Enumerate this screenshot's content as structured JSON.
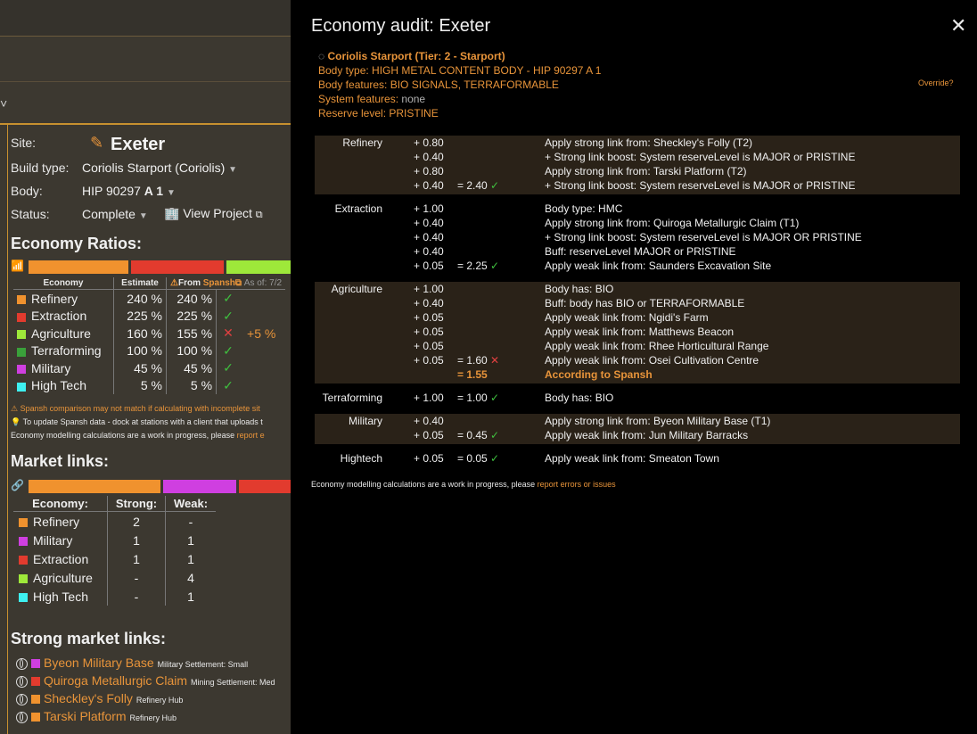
{
  "left": {
    "chevron": "˅",
    "site_label": "Site:",
    "site_name": "Exeter",
    "build_type_label": "Build type:",
    "build_type_value": "Coriolis Starport (Coriolis)",
    "body_label": "Body:",
    "body_value": "HIP 90297",
    "body_bold": "A 1",
    "status_label": "Status:",
    "status_value": "Complete",
    "view_project": "View Project",
    "economy_ratios_title": "Economy Ratios:",
    "ratio_colors": [
      "#f0922e",
      "#e23b2e",
      "#9ee83a"
    ],
    "eco_table": {
      "h_economy": "Economy",
      "h_estimate": "Estimate",
      "h_from": "From",
      "h_spansh": "Spansh",
      "h_asof": "As of: 7/2",
      "rows": [
        {
          "name": "Refinery",
          "color": "#f0922e",
          "est": "240 %",
          "spansh": "240 %",
          "mark": "✓",
          "diff": ""
        },
        {
          "name": "Extraction",
          "color": "#e23b2e",
          "est": "225 %",
          "spansh": "225 %",
          "mark": "✓",
          "diff": ""
        },
        {
          "name": "Agriculture",
          "color": "#9ee83a",
          "est": "160 %",
          "spansh": "155 %",
          "mark": "✕",
          "diff": "+5 %"
        },
        {
          "name": "Terraforming",
          "color": "#3aa03a",
          "est": "100 %",
          "spansh": "100 %",
          "mark": "✓",
          "diff": ""
        },
        {
          "name": "Military",
          "color": "#cf3fe0",
          "est": "45 %",
          "spansh": "45 %",
          "mark": "✓",
          "diff": ""
        },
        {
          "name": "High Tech",
          "color": "#3ef0f0",
          "est": "5 %",
          "spansh": "5 %",
          "mark": "✓",
          "diff": ""
        }
      ]
    },
    "notes": {
      "n1": "Spansh comparison may not match if calculating with incomplete sit",
      "n2": "To update Spansh data - dock at stations with a client that uploads t",
      "n3": "Economy modelling calculations are a work in progress, please",
      "n3_link": "report e"
    },
    "market_links_title": "Market links:",
    "ml_colors": [
      "#f0922e",
      "#cf3fe0",
      "#e23b2e"
    ],
    "ml_table": {
      "h_economy": "Economy:",
      "h_strong": "Strong:",
      "h_weak": "Weak:",
      "rows": [
        {
          "name": "Refinery",
          "color": "#f0922e",
          "strong": "2",
          "weak": "-"
        },
        {
          "name": "Military",
          "color": "#cf3fe0",
          "strong": "1",
          "weak": "1"
        },
        {
          "name": "Extraction",
          "color": "#e23b2e",
          "strong": "1",
          "weak": "1"
        },
        {
          "name": "Agriculture",
          "color": "#9ee83a",
          "strong": "-",
          "weak": "4"
        },
        {
          "name": "High Tech",
          "color": "#3ef0f0",
          "strong": "-",
          "weak": "1"
        }
      ]
    },
    "strong_links_title": "Strong market links:",
    "strong_links": [
      {
        "name": "Byeon Military Base",
        "color": "#cf3fe0",
        "sub": "Military Settlement: Small"
      },
      {
        "name": "Quiroga Metallurgic Claim",
        "color": "#e23b2e",
        "sub": "Mining Settlement: Med"
      },
      {
        "name": "Sheckley's Folly",
        "color": "#f0922e",
        "sub": "Refinery Hub"
      },
      {
        "name": "Tarski Platform",
        "color": "#f0922e",
        "sub": "Refinery Hub"
      }
    ]
  },
  "panel": {
    "title": "Economy audit: Exeter",
    "close": "✕",
    "station": "Coriolis Starport (Tier: 2 - Starport)",
    "body_type": "Body type: HIGH METAL CONTENT BODY - HIP 90297 A 1",
    "body_features": "Body features: BIO SIGNALS, TERRAFORMABLE",
    "system_features_label": "System features:",
    "system_features_value": "none",
    "reserve_level": "Reserve level: PRISTINE",
    "override": "Override?",
    "groups": [
      {
        "rows": [
          {
            "eco": "Refinery",
            "delta": "+ 0.80",
            "total": "",
            "desc": "Apply strong link from: Sheckley's Folly (T2)"
          },
          {
            "eco": "",
            "delta": "+ 0.40",
            "total": "",
            "desc": "+ Strong link boost: System reserveLevel is MAJOR or PRISTINE"
          },
          {
            "eco": "",
            "delta": "+ 0.80",
            "total": "",
            "desc": "Apply strong link from: Tarski Platform (T2)"
          },
          {
            "eco": "",
            "delta": "+ 0.40",
            "total": "= 2.40",
            "mark": "✓",
            "desc": "+ Strong link boost: System reserveLevel is MAJOR or PRISTINE"
          }
        ]
      },
      {
        "rows": [
          {
            "eco": "Extraction",
            "delta": "+ 1.00",
            "total": "",
            "desc": "Body type: HMC"
          },
          {
            "eco": "",
            "delta": "+ 0.40",
            "total": "",
            "desc": "Apply strong link from: Quiroga Metallurgic Claim (T1)"
          },
          {
            "eco": "",
            "delta": "+ 0.40",
            "total": "",
            "desc": "+ Strong link boost: System reserveLevel is MAJOR OR PRISTINE"
          },
          {
            "eco": "",
            "delta": "+ 0.40",
            "total": "",
            "desc": "Buff: reserveLevel MAJOR or PRISTINE"
          },
          {
            "eco": "",
            "delta": "+ 0.05",
            "total": "= 2.25",
            "mark": "✓",
            "desc": "Apply weak link from: Saunders Excavation Site"
          }
        ]
      },
      {
        "rows": [
          {
            "eco": "Agriculture",
            "delta": "+ 1.00",
            "total": "",
            "desc": "Body has: BIO"
          },
          {
            "eco": "",
            "delta": "+ 0.40",
            "total": "",
            "desc": "Buff: body has BIO or TERRAFORMABLE"
          },
          {
            "eco": "",
            "delta": "+ 0.05",
            "total": "",
            "desc": "Apply weak link from: Ngidi's Farm"
          },
          {
            "eco": "",
            "delta": "+ 0.05",
            "total": "",
            "desc": "Apply weak link from: Matthews Beacon"
          },
          {
            "eco": "",
            "delta": "+ 0.05",
            "total": "",
            "desc": "Apply weak link from: Rhee Horticultural Range"
          },
          {
            "eco": "",
            "delta": "+ 0.05",
            "total": "= 1.60",
            "mark": "✕",
            "desc": "Apply weak link from: Osei Cultivation Centre"
          },
          {
            "eco": "",
            "delta": "",
            "total": "= 1.55",
            "desc": "According to Spansh",
            "spansh": true
          }
        ]
      },
      {
        "rows": [
          {
            "eco": "Terraforming",
            "delta": "+ 1.00",
            "total": "= 1.00",
            "mark": "✓",
            "desc": "Body has: BIO"
          }
        ]
      },
      {
        "rows": [
          {
            "eco": "Military",
            "delta": "+ 0.40",
            "total": "",
            "desc": "Apply strong link from: Byeon Military Base (T1)"
          },
          {
            "eco": "",
            "delta": "+ 0.05",
            "total": "= 0.45",
            "mark": "✓",
            "desc": "Apply weak link from: Jun Military Barracks"
          }
        ]
      },
      {
        "rows": [
          {
            "eco": "Hightech",
            "delta": "+ 0.05",
            "total": "= 0.05",
            "mark": "✓",
            "desc": "Apply weak link from: Smeaton Town"
          }
        ]
      }
    ],
    "footer_text": "Economy modelling calculations are a work in progress, please",
    "footer_link": "report errors or issues"
  }
}
